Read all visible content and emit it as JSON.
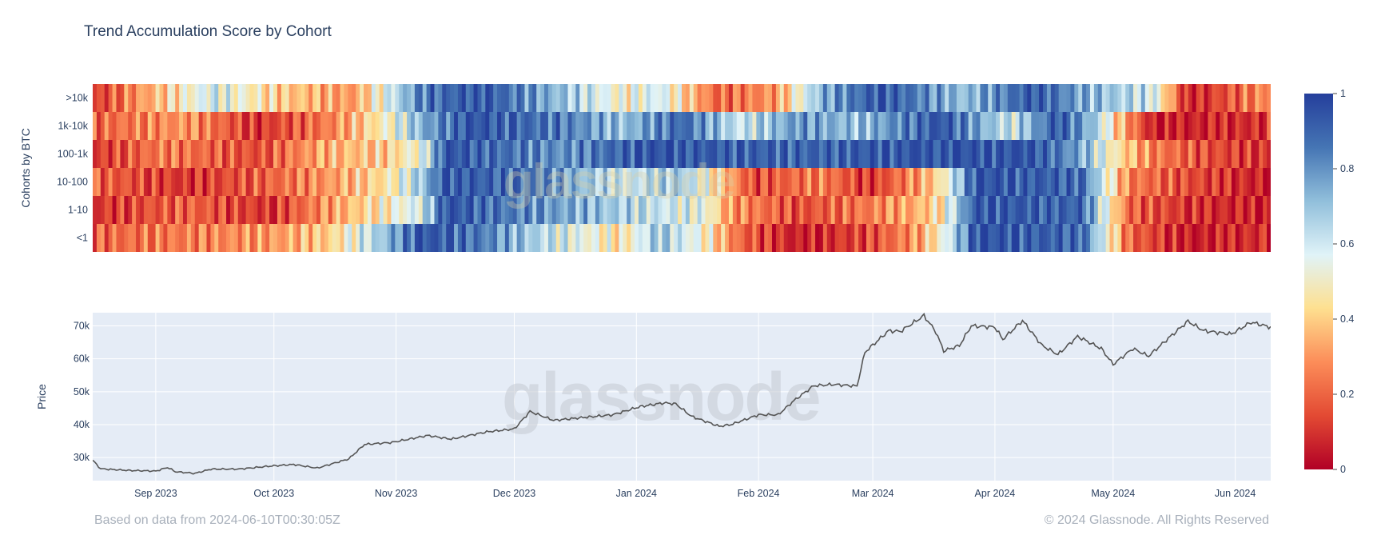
{
  "chart_data": [
    {
      "type": "heatmap",
      "title": "Trend Accumulation Score by Cohort",
      "ylabel": "Cohorts by BTC",
      "rows": [
        ">10k",
        "1k-10k",
        "100-1k",
        "10-100",
        "1-10",
        "<1"
      ],
      "colorscale": {
        "min": 0,
        "max": 1,
        "ticks": [
          "0",
          "0.2",
          "0.4",
          "0.6",
          "0.8",
          "1"
        ],
        "colors": [
          "#b10026",
          "#e34a33",
          "#fc8d59",
          "#fee090",
          "#e0f3f8",
          "#91bfdb",
          "#4575b4",
          "#253f9c"
        ]
      },
      "time_range": [
        "2023-08-16",
        "2024-06-10"
      ],
      "segments": [
        {
          "row": ">10k",
          "values": [
            [
              0.0,
              0.1
            ],
            [
              0.03,
              0.25
            ],
            [
              0.1,
              0.6
            ],
            [
              0.16,
              0.4
            ],
            [
              0.22,
              0.3
            ],
            [
              0.28,
              0.85
            ],
            [
              0.33,
              0.95
            ],
            [
              0.4,
              0.7
            ],
            [
              0.45,
              0.5
            ],
            [
              0.48,
              0.6
            ],
            [
              0.53,
              0.2
            ],
            [
              0.58,
              0.3
            ],
            [
              0.62,
              0.75
            ],
            [
              0.67,
              0.95
            ],
            [
              0.74,
              0.7
            ],
            [
              0.8,
              0.95
            ],
            [
              0.84,
              0.75
            ],
            [
              0.9,
              0.6
            ],
            [
              0.93,
              0.05
            ],
            [
              1.0,
              0.3
            ]
          ]
        },
        {
          "row": "1k-10k",
          "values": [
            [
              0.0,
              0.2
            ],
            [
              0.08,
              0.3
            ],
            [
              0.14,
              0.1
            ],
            [
              0.2,
              0.25
            ],
            [
              0.25,
              0.5
            ],
            [
              0.28,
              0.75
            ],
            [
              0.32,
              0.95
            ],
            [
              0.4,
              0.85
            ],
            [
              0.45,
              0.7
            ],
            [
              0.5,
              0.9
            ],
            [
              0.55,
              0.6
            ],
            [
              0.6,
              0.8
            ],
            [
              0.65,
              0.7
            ],
            [
              0.72,
              0.95
            ],
            [
              0.78,
              0.6
            ],
            [
              0.82,
              0.95
            ],
            [
              0.85,
              0.7
            ],
            [
              0.87,
              0.4
            ],
            [
              0.9,
              0.05
            ],
            [
              1.0,
              0.1
            ]
          ]
        },
        {
          "row": "100-1k",
          "values": [
            [
              0.0,
              0.1
            ],
            [
              0.06,
              0.25
            ],
            [
              0.14,
              0.15
            ],
            [
              0.2,
              0.35
            ],
            [
              0.25,
              0.4
            ],
            [
              0.28,
              0.55
            ],
            [
              0.3,
              0.95
            ],
            [
              0.4,
              0.8
            ],
            [
              0.47,
              0.95
            ],
            [
              0.6,
              0.9
            ],
            [
              0.7,
              0.95
            ],
            [
              0.8,
              0.95
            ],
            [
              0.84,
              0.75
            ],
            [
              0.87,
              0.45
            ],
            [
              0.9,
              0.25
            ],
            [
              0.95,
              0.15
            ],
            [
              1.0,
              0.1
            ]
          ]
        },
        {
          "row": "10-100",
          "values": [
            [
              0.0,
              0.2
            ],
            [
              0.08,
              0.1
            ],
            [
              0.15,
              0.2
            ],
            [
              0.2,
              0.3
            ],
            [
              0.25,
              0.45
            ],
            [
              0.28,
              0.7
            ],
            [
              0.3,
              0.95
            ],
            [
              0.38,
              0.85
            ],
            [
              0.45,
              0.6
            ],
            [
              0.5,
              0.7
            ],
            [
              0.56,
              0.15
            ],
            [
              0.62,
              0.25
            ],
            [
              0.66,
              0.1
            ],
            [
              0.7,
              0.3
            ],
            [
              0.72,
              0.45
            ],
            [
              0.75,
              0.95
            ],
            [
              0.84,
              0.9
            ],
            [
              0.86,
              0.55
            ],
            [
              0.88,
              0.25
            ],
            [
              0.93,
              0.15
            ],
            [
              1.0,
              0.05
            ]
          ]
        },
        {
          "row": "1-10",
          "values": [
            [
              0.0,
              0.1
            ],
            [
              0.08,
              0.2
            ],
            [
              0.15,
              0.1
            ],
            [
              0.2,
              0.3
            ],
            [
              0.24,
              0.45
            ],
            [
              0.28,
              0.6
            ],
            [
              0.3,
              0.95
            ],
            [
              0.38,
              0.8
            ],
            [
              0.46,
              0.65
            ],
            [
              0.52,
              0.55
            ],
            [
              0.54,
              0.3
            ],
            [
              0.6,
              0.15
            ],
            [
              0.66,
              0.25
            ],
            [
              0.7,
              0.35
            ],
            [
              0.72,
              0.45
            ],
            [
              0.75,
              0.95
            ],
            [
              0.84,
              0.9
            ],
            [
              0.86,
              0.55
            ],
            [
              0.88,
              0.2
            ],
            [
              0.93,
              0.1
            ],
            [
              1.0,
              0.05
            ]
          ]
        },
        {
          "row": "<1",
          "values": [
            [
              0.0,
              0.2
            ],
            [
              0.08,
              0.25
            ],
            [
              0.15,
              0.3
            ],
            [
              0.2,
              0.4
            ],
            [
              0.24,
              0.65
            ],
            [
              0.28,
              0.95
            ],
            [
              0.33,
              0.85
            ],
            [
              0.38,
              0.65
            ],
            [
              0.45,
              0.45
            ],
            [
              0.48,
              0.7
            ],
            [
              0.52,
              0.5
            ],
            [
              0.55,
              0.2
            ],
            [
              0.6,
              0.05
            ],
            [
              0.66,
              0.15
            ],
            [
              0.7,
              0.3
            ],
            [
              0.72,
              0.5
            ],
            [
              0.75,
              0.95
            ],
            [
              0.84,
              0.9
            ],
            [
              0.86,
              0.55
            ],
            [
              0.88,
              0.2
            ],
            [
              0.93,
              0.05
            ],
            [
              1.0,
              0.1
            ]
          ]
        }
      ]
    },
    {
      "type": "line",
      "ylabel": "Price",
      "yticks": [
        "30k",
        "40k",
        "50k",
        "60k",
        "70k"
      ],
      "ylim": [
        23000,
        74000
      ],
      "xticks": [
        "Sep 2023",
        "Oct 2023",
        "Nov 2023",
        "Dec 2023",
        "Jan 2024",
        "Feb 2024",
        "Mar 2024",
        "Apr 2024",
        "May 2024",
        "Jun 2024"
      ],
      "xtick_dates": [
        "2023-09-01",
        "2023-10-01",
        "2023-11-01",
        "2023-12-01",
        "2024-01-01",
        "2024-02-01",
        "2024-03-01",
        "2024-04-01",
        "2024-05-01",
        "2024-06-01"
      ],
      "xlim": [
        "2023-08-16",
        "2024-06-10"
      ],
      "grid": true,
      "series": [
        {
          "color": "#555555",
          "points": [
            [
              "2023-08-16",
              29200
            ],
            [
              "2023-08-18",
              26600
            ],
            [
              "2023-08-25",
              26100
            ],
            [
              "2023-09-01",
              25900
            ],
            [
              "2023-09-04",
              27000
            ],
            [
              "2023-09-06",
              25700
            ],
            [
              "2023-09-11",
              25200
            ],
            [
              "2023-09-15",
              26500
            ],
            [
              "2023-09-22",
              26500
            ],
            [
              "2023-10-01",
              27500
            ],
            [
              "2023-10-06",
              27900
            ],
            [
              "2023-10-12",
              26800
            ],
            [
              "2023-10-20",
              29600
            ],
            [
              "2023-10-24",
              34000
            ],
            [
              "2023-10-31",
              34600
            ],
            [
              "2023-11-09",
              36700
            ],
            [
              "2023-11-15",
              35600
            ],
            [
              "2023-11-24",
              37800
            ],
            [
              "2023-12-01",
              38700
            ],
            [
              "2023-12-05",
              44000
            ],
            [
              "2023-12-11",
              41300
            ],
            [
              "2023-12-17",
              42000
            ],
            [
              "2023-12-26",
              43000
            ],
            [
              "2024-01-02",
              45500
            ],
            [
              "2024-01-08",
              46600
            ],
            [
              "2024-01-11",
              46300
            ],
            [
              "2024-01-15",
              42500
            ],
            [
              "2024-01-22",
              39500
            ],
            [
              "2024-01-25",
              40000
            ],
            [
              "2024-02-01",
              43000
            ],
            [
              "2024-02-06",
              43000
            ],
            [
              "2024-02-10",
              47300
            ],
            [
              "2024-02-15",
              51800
            ],
            [
              "2024-02-20",
              52200
            ],
            [
              "2024-02-26",
              51700
            ],
            [
              "2024-02-28",
              62000
            ],
            [
              "2024-03-05",
              68500
            ],
            [
              "2024-03-08",
              68300
            ],
            [
              "2024-03-14",
              73100
            ],
            [
              "2024-03-17",
              68200
            ],
            [
              "2024-03-19",
              62400
            ],
            [
              "2024-03-23",
              64000
            ],
            [
              "2024-03-26",
              70000
            ],
            [
              "2024-04-01",
              69600
            ],
            [
              "2024-04-03",
              65900
            ],
            [
              "2024-04-08",
              71600
            ],
            [
              "2024-04-13",
              64000
            ],
            [
              "2024-04-17",
              61300
            ],
            [
              "2024-04-22",
              66800
            ],
            [
              "2024-04-28",
              63100
            ],
            [
              "2024-05-01",
              58300
            ],
            [
              "2024-05-06",
              63100
            ],
            [
              "2024-05-10",
              60800
            ],
            [
              "2024-05-15",
              66200
            ],
            [
              "2024-05-20",
              71400
            ],
            [
              "2024-05-24",
              68500
            ],
            [
              "2024-05-31",
              67500
            ],
            [
              "2024-06-05",
              71100
            ],
            [
              "2024-06-10",
              69600
            ]
          ]
        }
      ]
    }
  ],
  "footer": {
    "left": "Based on data from 2024-06-10T00:30:05Z",
    "right": "© 2024 Glassnode. All Rights Reserved",
    "watermark": "glassnode"
  }
}
